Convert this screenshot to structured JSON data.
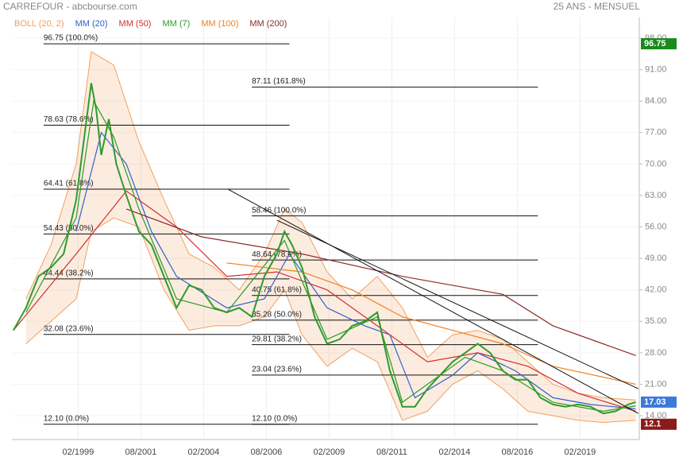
{
  "header": {
    "title": "CARREFOUR - abcbourse.com",
    "period": "25 ANS - MENSUEL"
  },
  "chart_data": {
    "type": "line",
    "xlim": [
      1996.44,
      2021.44
    ],
    "ylim": [
      8.7,
      102.6
    ],
    "grid": true,
    "xticks": [
      {
        "value": 1999.08,
        "label": "02/1999"
      },
      {
        "value": 2001.58,
        "label": "08/2001"
      },
      {
        "value": 2004.08,
        "label": "02/2004"
      },
      {
        "value": 2006.58,
        "label": "08/2006"
      },
      {
        "value": 2009.08,
        "label": "02/2009"
      },
      {
        "value": 2011.58,
        "label": "08/2011"
      },
      {
        "value": 2014.08,
        "label": "02/2014"
      },
      {
        "value": 2016.58,
        "label": "08/2016"
      },
      {
        "value": 2019.08,
        "label": "02/2019"
      }
    ],
    "yticks": [
      {
        "value": 98,
        "label": "98.00"
      },
      {
        "value": 91,
        "label": "91.00"
      },
      {
        "value": 84,
        "label": "84.00"
      },
      {
        "value": 77,
        "label": "77.00"
      },
      {
        "value": 70,
        "label": "70.00"
      },
      {
        "value": 63,
        "label": "63.00"
      },
      {
        "value": 56,
        "label": "56.00"
      },
      {
        "value": 49,
        "label": "49.00"
      },
      {
        "value": 42,
        "label": "42.00"
      },
      {
        "value": 35,
        "label": "35.00"
      },
      {
        "value": 28,
        "label": "28.00"
      },
      {
        "value": 21,
        "label": "21.00"
      },
      {
        "value": 14,
        "label": "14.00"
      }
    ],
    "bollinger": {
      "name": "BOLL (20, 2)",
      "color": "#f0a060",
      "x": [
        1997,
        1998,
        1999,
        1999.6,
        2000.5,
        2001.5,
        2002.5,
        2003.5,
        2004.5,
        2005.5,
        2006.5,
        2007.3,
        2008,
        2009,
        2010,
        2011,
        2012,
        2013,
        2014,
        2015,
        2016,
        2017,
        2018,
        2019,
        2020,
        2021.3
      ],
      "upper": [
        40,
        52,
        70,
        95,
        92,
        75,
        62,
        50,
        47,
        42,
        50,
        60,
        57,
        46,
        40,
        45,
        38,
        27,
        32,
        33,
        31,
        26,
        21,
        19,
        18,
        17.5
      ],
      "lower": [
        30,
        35,
        40,
        55,
        58,
        56,
        42,
        33,
        34,
        34,
        36,
        42,
        32,
        25,
        29,
        26,
        13,
        15,
        21,
        24,
        20,
        15,
        14,
        13,
        12.5,
        13
      ]
    },
    "series": [
      {
        "name": "MM (20)",
        "color": "#3060d0",
        "x": [
          1999,
          2000,
          2001,
          2002,
          2003,
          2005,
          2006.5,
          2007.5,
          2009,
          2010.5,
          2011.5,
          2012.5,
          2014,
          2015,
          2016.5,
          2018,
          2019.5,
          2021.3
        ],
        "values": [
          55,
          77,
          70,
          55,
          45,
          38,
          40,
          50,
          38,
          34,
          32,
          18,
          23,
          28,
          24,
          18,
          16.5,
          15.5
        ]
      },
      {
        "name": "MM (50)",
        "color": "#d03030",
        "x": [
          1996.5,
          1999,
          2001,
          2003,
          2005,
          2007,
          2009,
          2011,
          2013,
          2015,
          2017,
          2019,
          2021.3
        ],
        "values": [
          33,
          50,
          64,
          56,
          45,
          46,
          42,
          34,
          26,
          28,
          25,
          19,
          15
        ]
      },
      {
        "name": "MM (7)",
        "color": "#2a9a2a",
        "x": [
          1997,
          1999,
          1999.7,
          2000.5,
          2001.5,
          2003,
          2005,
          2007.3,
          2009,
          2011,
          2012,
          2014.5,
          2016,
          2018,
          2020,
          2021.3
        ],
        "values": [
          37,
          58,
          84,
          76,
          60,
          40,
          37,
          53,
          31,
          36,
          17,
          27,
          24,
          17,
          15,
          16.2
        ]
      },
      {
        "name": "MM (100)",
        "color": "#f08020",
        "x": [
          2005,
          2008,
          2010,
          2012,
          2014,
          2016,
          2018,
          2021.3
        ],
        "values": [
          48,
          46,
          42,
          36,
          33,
          30,
          25,
          21
        ]
      },
      {
        "name": "MM (200)",
        "color": "#8b2a2a",
        "x": [
          2001,
          2004,
          2008,
          2012,
          2016,
          2018,
          2021.3
        ],
        "values": [
          60,
          53.8,
          50,
          45,
          41,
          34,
          27.4
        ]
      }
    ],
    "price": {
      "color": "#2e9a2e",
      "x": [
        1996.5,
        1997,
        1997.5,
        1998,
        1998.5,
        1999,
        1999.3,
        1999.6,
        1999.8,
        2000,
        2000.3,
        2000.6,
        2001,
        2001.5,
        2002,
        2002.5,
        2003,
        2003.5,
        2004,
        2004.5,
        2005,
        2005.5,
        2006,
        2006.5,
        2007,
        2007.3,
        2007.6,
        2008,
        2008.5,
        2009,
        2009.5,
        2010,
        2010.5,
        2011,
        2011.5,
        2012,
        2012.5,
        2013,
        2013.5,
        2014,
        2014.5,
        2015,
        2015.5,
        2016,
        2016.5,
        2017,
        2017.5,
        2018,
        2018.5,
        2019,
        2019.5,
        2020,
        2020.5,
        2021,
        2021.3
      ],
      "values": [
        33,
        38,
        45,
        47,
        50,
        62,
        75,
        88,
        82,
        72,
        80,
        70,
        63,
        55,
        52,
        45,
        38,
        43,
        42,
        38,
        37,
        38,
        36,
        45,
        50,
        55,
        52,
        47,
        36,
        30,
        31,
        34,
        35,
        37,
        24,
        16,
        16,
        20,
        23,
        26,
        28,
        30,
        28,
        24,
        22,
        22,
        18,
        16.5,
        16,
        16.5,
        16,
        14.5,
        15,
        16.5,
        17.03
      ]
    },
    "fibonacci": [
      {
        "x": [
          1997.7,
          2007.5
        ],
        "levels": [
          {
            "value": 96.75,
            "label": "96.75  (100.0%)"
          },
          {
            "value": 78.63,
            "label": "78.63  (78.6%)"
          },
          {
            "value": 64.41,
            "label": "64.41  (61.8%)"
          },
          {
            "value": 54.43,
            "label": "54.43  (50.0%)"
          },
          {
            "value": 44.44,
            "label": "44.44  (38.2%)"
          },
          {
            "value": 32.08,
            "label": "32.08  (23.6%)"
          },
          {
            "value": 12.1,
            "label": "12.10  (0.0%)"
          }
        ]
      },
      {
        "x": [
          2006.0,
          2017.4
        ],
        "levels": [
          {
            "value": 87.11,
            "label": "87.11  (161.8%)"
          },
          {
            "value": 58.46,
            "label": "58.46  (100.0%)"
          },
          {
            "value": 48.64,
            "label": "48.64  (78.6%)"
          },
          {
            "value": 40.75,
            "label": "40.75  (61.8%)"
          },
          {
            "value": 35.28,
            "label": "35.28  (50.0%)"
          },
          {
            "value": 29.81,
            "label": "29.81  (38.2%)"
          },
          {
            "value": 23.04,
            "label": "23.04  (23.6%)"
          },
          {
            "value": 12.1,
            "label": "12.10  (0.0%)"
          }
        ]
      }
    ],
    "trendlines": [
      {
        "x": [
          2005.05,
          2021.4
        ],
        "y": [
          64.4,
          14.5
        ]
      },
      {
        "x": [
          2007.0,
          2021.4
        ],
        "y": [
          57.5,
          20
        ]
      }
    ],
    "price_badges": [
      {
        "value": 96.75,
        "color": "#1a8a1a"
      },
      {
        "value": 17.03,
        "color": "#3a7ad8"
      },
      {
        "value": 12.1,
        "color": "#8b1a1a"
      }
    ]
  }
}
